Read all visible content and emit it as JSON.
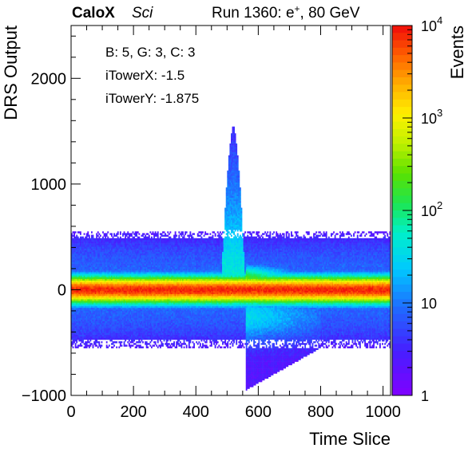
{
  "header": {
    "experiment": "CaloX",
    "tag": "Sci",
    "run_text_before": "Run 1360: e",
    "run_superscript": "+",
    "run_text_after": ", 80 GeV"
  },
  "chart_data": {
    "type": "heatmap",
    "title": "",
    "xlabel": "Time Slice",
    "ylabel": "DRS Output",
    "zlabel": "Events",
    "xlim": [
      0,
      1024
    ],
    "ylim": [
      -1000,
      2500
    ],
    "zlim": [
      1,
      10000
    ],
    "z_scale": "log",
    "x_ticks": [
      "0",
      "200",
      "400",
      "600",
      "800",
      "1000"
    ],
    "x_tick_values": [
      0,
      200,
      400,
      600,
      800,
      1000
    ],
    "y_ticks": [
      "−1000",
      "0",
      "1000",
      "2000"
    ],
    "y_tick_values": [
      -1000,
      0,
      1000,
      2000
    ],
    "z_ticks": [
      {
        "value": 1,
        "mantissa": "1",
        "exponent": ""
      },
      {
        "value": 10,
        "mantissa": "10",
        "exponent": ""
      },
      {
        "value": 100,
        "mantissa": "10",
        "exponent": "2"
      },
      {
        "value": 1000,
        "mantissa": "10",
        "exponent": "3"
      },
      {
        "value": 10000,
        "mantissa": "10",
        "exponent": "4"
      }
    ],
    "annotations": [
      "B: 5, G: 3, C: 3",
      "iTowerX: -1.5",
      "iTowerY: -1.875"
    ],
    "features": {
      "baseline_level": 0,
      "baseline_half_width": 550,
      "pulse_window": [
        480,
        560
      ],
      "pulse_peak": 1560,
      "negative_tail_window": [
        560,
        800
      ],
      "negative_tail_min": -950
    },
    "grid": false,
    "legend": "none"
  }
}
